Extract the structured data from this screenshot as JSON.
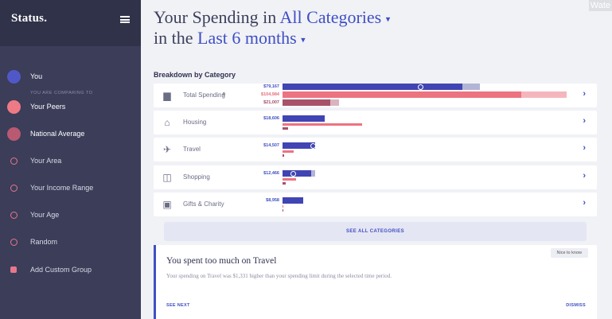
{
  "app": {
    "brand": "Status.",
    "watermark": "Wate"
  },
  "sidebar": {
    "comparing_caption": "YOU ARE COMPARING TO",
    "items": [
      {
        "label": "You",
        "color": "#5058c7",
        "marker": "dot"
      },
      {
        "label": "Your Peers",
        "color": "#ee7a86",
        "marker": "dot"
      },
      {
        "label": "National Average",
        "color": "#b95972",
        "marker": "dot"
      },
      {
        "label": "Your Area",
        "marker": "ring"
      },
      {
        "label": "Your Income Range",
        "marker": "ring"
      },
      {
        "label": "Your Age",
        "marker": "ring"
      },
      {
        "label": "Random",
        "marker": "ring"
      },
      {
        "label": "Add Custom Group",
        "marker": "square"
      }
    ]
  },
  "header": {
    "line1_prefix": "Your Spending in ",
    "category_select": "All Categories",
    "line2_prefix": "in the ",
    "period_select": "Last 6 months",
    "caret": "▾"
  },
  "breakdown": {
    "title": "Breakdown by Category",
    "colors": {
      "you": "#4045b3",
      "peers": "#ec7480",
      "national": "#a95169",
      "you_light": "#b2b4d6",
      "peers_light": "#f4b6bc",
      "national_light": "#d9b4bf"
    },
    "rows": [
      {
        "label": "Total Spending",
        "superscript": "0",
        "icon": "receipt-icon",
        "glyph": "▆",
        "you": 79167,
        "peers": 104984,
        "national": 21007,
        "you_text": "$79,167",
        "peers_text": "$104,984",
        "national_text": "$21,007",
        "you_limit": 87000,
        "peers_limit": 125000,
        "national_limit": 25000,
        "marker": 0.77
      },
      {
        "label": "Housing",
        "icon": "home-icon",
        "glyph": "⌂",
        "you": 18606,
        "you_text": "$18,606",
        "peers": 35000,
        "national": 2300
      },
      {
        "label": "Travel",
        "icon": "plane-icon",
        "glyph": "✈",
        "you": 14507,
        "you_text": "$14,507",
        "peers": 5000,
        "national": 700,
        "marker": 0.95
      },
      {
        "label": "Shopping",
        "icon": "shopping-bag-icon",
        "glyph": "◫",
        "you": 12466,
        "you_text": "$12,466",
        "you_limit": 14500,
        "peers": 6000,
        "national": 1400,
        "marker": 0.38
      },
      {
        "label": "Gifts & Charity",
        "icon": "gift-icon",
        "glyph": "▣",
        "you": 8958,
        "you_text": "$8,958",
        "peers": 0,
        "national": 200
      }
    ],
    "see_all": "SEE ALL CATEGORIES"
  },
  "alert": {
    "badge": "Nice to know",
    "title": "You spent too much on Travel",
    "body": "Your spending on Travel was $1,331 higher than your spending limit during the selected time period.",
    "see_next": "SEE NEXT",
    "dismiss": "DISMISS"
  }
}
